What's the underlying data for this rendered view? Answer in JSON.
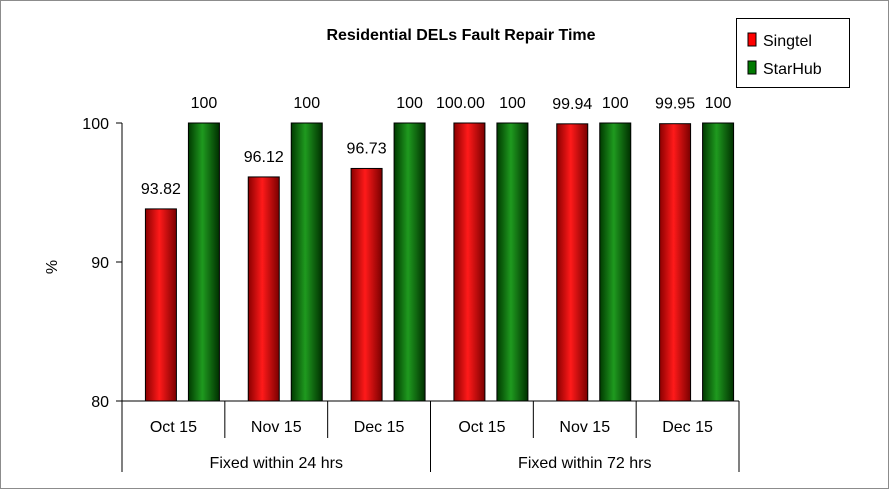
{
  "chart_data": {
    "type": "bar",
    "title": "Residential DELs Fault Repair Time",
    "ylabel": "%",
    "ylim": [
      80,
      100
    ],
    "yticks": [
      80,
      90,
      100
    ],
    "categories": [
      "Oct 15",
      "Nov 15",
      "Dec 15",
      "Oct 15",
      "Nov 15",
      "Dec 15"
    ],
    "groups": [
      {
        "label": "Fixed within 24 hrs",
        "span": 3
      },
      {
        "label": "Fixed within 72 hrs",
        "span": 3
      }
    ],
    "series": [
      {
        "name": "Singtel",
        "color": "#ff0000",
        "values": [
          93.82,
          96.12,
          96.73,
          100.0,
          99.94,
          99.95
        ],
        "labels": [
          "93.82",
          "96.12",
          "96.73",
          "100.00",
          "99.94",
          "99.95"
        ]
      },
      {
        "name": "StarHub",
        "color": "#007a00",
        "values": [
          100,
          100,
          100,
          100,
          100,
          100
        ],
        "labels": [
          "100",
          "100",
          "100",
          "100",
          "100",
          "100"
        ]
      }
    ],
    "grid": false,
    "legend": "top-right"
  }
}
